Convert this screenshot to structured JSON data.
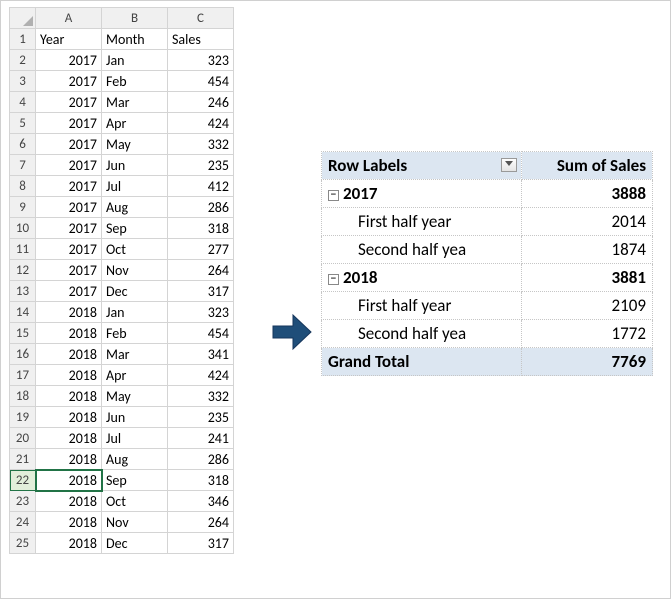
{
  "sheet": {
    "columns": [
      "A",
      "B",
      "C"
    ],
    "headers": [
      "Year",
      "Month",
      "Sales"
    ],
    "rows": [
      {
        "n": 1,
        "year": "Year",
        "month": "Month",
        "sales": "Sales",
        "isHeader": true
      },
      {
        "n": 2,
        "year": 2017,
        "month": "Jan",
        "sales": 323
      },
      {
        "n": 3,
        "year": 2017,
        "month": "Feb",
        "sales": 454
      },
      {
        "n": 4,
        "year": 2017,
        "month": "Mar",
        "sales": 246
      },
      {
        "n": 5,
        "year": 2017,
        "month": "Apr",
        "sales": 424
      },
      {
        "n": 6,
        "year": 2017,
        "month": "May",
        "sales": 332
      },
      {
        "n": 7,
        "year": 2017,
        "month": "Jun",
        "sales": 235
      },
      {
        "n": 8,
        "year": 2017,
        "month": "Jul",
        "sales": 412
      },
      {
        "n": 9,
        "year": 2017,
        "month": "Aug",
        "sales": 286
      },
      {
        "n": 10,
        "year": 2017,
        "month": "Sep",
        "sales": 318
      },
      {
        "n": 11,
        "year": 2017,
        "month": "Oct",
        "sales": 277
      },
      {
        "n": 12,
        "year": 2017,
        "month": "Nov",
        "sales": 264
      },
      {
        "n": 13,
        "year": 2017,
        "month": "Dec",
        "sales": 317
      },
      {
        "n": 14,
        "year": 2018,
        "month": "Jan",
        "sales": 323
      },
      {
        "n": 15,
        "year": 2018,
        "month": "Feb",
        "sales": 454
      },
      {
        "n": 16,
        "year": 2018,
        "month": "Mar",
        "sales": 341
      },
      {
        "n": 17,
        "year": 2018,
        "month": "Apr",
        "sales": 424
      },
      {
        "n": 18,
        "year": 2018,
        "month": "May",
        "sales": 332
      },
      {
        "n": 19,
        "year": 2018,
        "month": "Jun",
        "sales": 235
      },
      {
        "n": 20,
        "year": 2018,
        "month": "Jul",
        "sales": 241
      },
      {
        "n": 21,
        "year": 2018,
        "month": "Aug",
        "sales": 286
      },
      {
        "n": 22,
        "year": 2018,
        "month": "Sep",
        "sales": 318
      },
      {
        "n": 23,
        "year": 2018,
        "month": "Oct",
        "sales": 346
      },
      {
        "n": 24,
        "year": 2018,
        "month": "Nov",
        "sales": 264
      },
      {
        "n": 25,
        "year": 2018,
        "month": "Dec",
        "sales": 317
      }
    ],
    "selectedRow": 22,
    "colors": {
      "gridBorder": "#d4d4d4",
      "headerBg": "#f0f0f0",
      "selectionOutline": "#217346",
      "selectionFill": "#e2efda"
    }
  },
  "pivot": {
    "header": {
      "left": "Row Labels",
      "right": "Sum of Sales"
    },
    "groups": [
      {
        "year": "2017",
        "total": 3888,
        "rows": [
          {
            "label": "First half year",
            "value": 2014
          },
          {
            "label": "Second half yea",
            "value": 1874
          }
        ]
      },
      {
        "year": "2018",
        "total": 3881,
        "rows": [
          {
            "label": "First half year",
            "value": 2109
          },
          {
            "label": "Second half yea",
            "value": 1772
          }
        ]
      }
    ],
    "grand": {
      "label": "Grand Total",
      "value": 7769
    },
    "colors": {
      "headerBg": "#dce6f1",
      "border": "#c6c6c6"
    }
  },
  "arrow": {
    "color": "#1f4e79"
  }
}
